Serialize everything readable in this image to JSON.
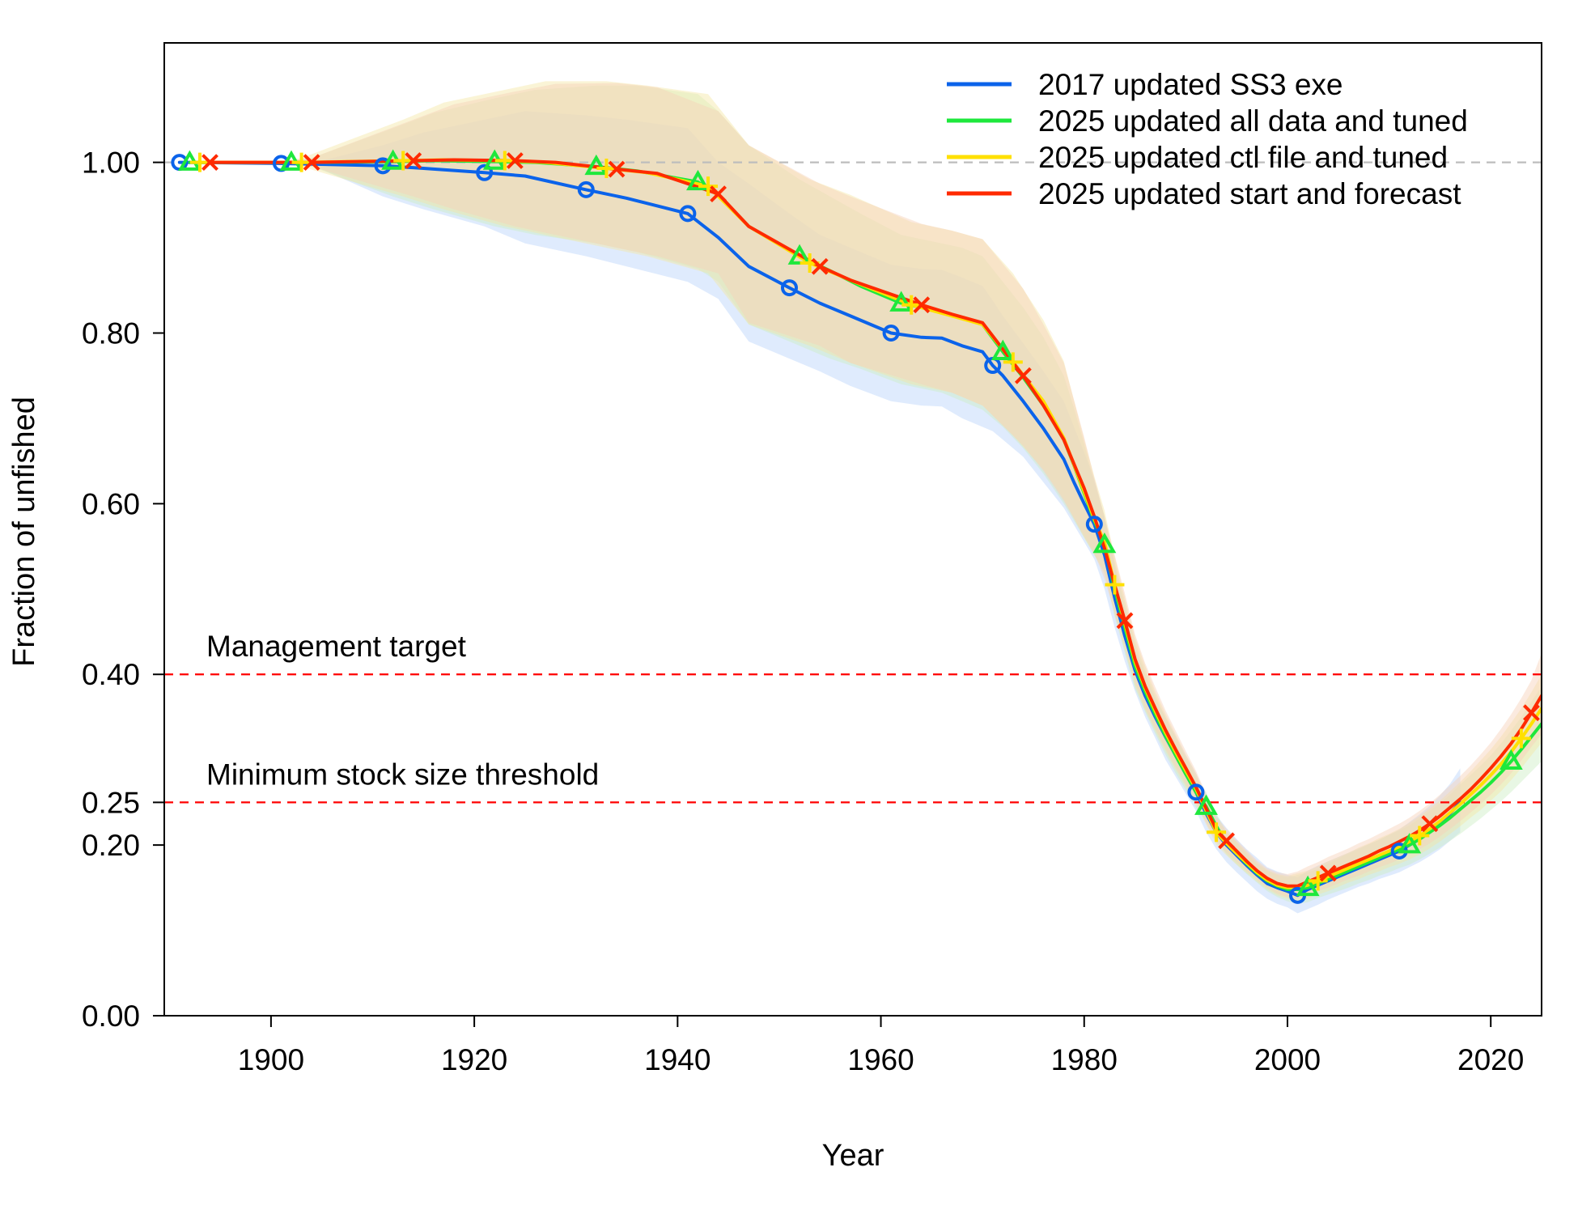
{
  "chart_data": {
    "type": "line",
    "title": "",
    "xlabel": "Year",
    "ylabel": "Fraction of unfished",
    "xlim": [
      1889.5,
      2025
    ],
    "ylim": [
      0,
      1.14
    ],
    "x_ticks": [
      1900,
      1920,
      1940,
      1960,
      1980,
      2000,
      2020
    ],
    "y_ticks": [
      {
        "value": 0.0,
        "label": "0.00"
      },
      {
        "value": 0.2,
        "label": "0.20"
      },
      {
        "value": 0.25,
        "label": "0.25"
      },
      {
        "value": 0.4,
        "label": "0.40"
      },
      {
        "value": 0.6,
        "label": "0.60"
      },
      {
        "value": 0.8,
        "label": "0.80"
      },
      {
        "value": 1.0,
        "label": "1.00"
      }
    ],
    "grid": false,
    "legend_position": "top-right",
    "reference_lines": [
      {
        "y": 1.0,
        "label": "",
        "color": "#bdbdbd"
      },
      {
        "y": 0.4,
        "label": "Management target",
        "color": "#ff0000"
      },
      {
        "y": 0.25,
        "label": "Minimum stock size threshold",
        "color": "#ff0000"
      }
    ],
    "series": [
      {
        "name": "2017 updated SS3 exe",
        "color": "#0b63ea",
        "marker": "circle",
        "marker_every": 10,
        "fill": "#b7d2fa",
        "x": [
          1891,
          1900,
          1904,
          1911,
          1915,
          1921,
          1925,
          1931,
          1935,
          1941,
          1944,
          1947,
          1951,
          1954,
          1957,
          1961,
          1964,
          1966,
          1968,
          1970,
          1971,
          1972,
          1974,
          1976,
          1978,
          1979,
          1980,
          1981,
          1982,
          1983,
          1984,
          1985,
          1986,
          1987,
          1988,
          1989,
          1990,
          1991,
          1992,
          1993,
          1994,
          1995,
          1996,
          1997,
          1998,
          1999,
          2000,
          2001,
          2002,
          2003,
          2004,
          2005,
          2006,
          2007,
          2008,
          2009,
          2010,
          2011,
          2012,
          2013,
          2014,
          2015,
          2016,
          2017
        ],
        "y": [
          1.0,
          0.999,
          0.998,
          0.996,
          0.993,
          0.988,
          0.984,
          0.968,
          0.958,
          0.94,
          0.912,
          0.878,
          0.853,
          0.835,
          0.82,
          0.8,
          0.795,
          0.794,
          0.785,
          0.778,
          0.762,
          0.75,
          0.72,
          0.688,
          0.652,
          0.625,
          0.6,
          0.576,
          0.54,
          0.49,
          0.445,
          0.405,
          0.375,
          0.35,
          0.327,
          0.305,
          0.283,
          0.262,
          0.237,
          0.215,
          0.2,
          0.188,
          0.176,
          0.165,
          0.155,
          0.15,
          0.146,
          0.141,
          0.148,
          0.153,
          0.158,
          0.163,
          0.168,
          0.173,
          0.178,
          0.183,
          0.188,
          0.193,
          0.2,
          0.207,
          0.215,
          0.225,
          0.237,
          0.25
        ],
        "lower": [
          1.0,
          0.999,
          0.997,
          0.96,
          0.945,
          0.925,
          0.905,
          0.89,
          0.878,
          0.86,
          0.84,
          0.79,
          0.77,
          0.755,
          0.738,
          0.72,
          0.715,
          0.714,
          0.7,
          0.69,
          0.685,
          0.675,
          0.655,
          0.625,
          0.595,
          0.575,
          0.555,
          0.535,
          0.5,
          0.455,
          0.415,
          0.38,
          0.35,
          0.325,
          0.3,
          0.28,
          0.26,
          0.24,
          0.215,
          0.195,
          0.18,
          0.168,
          0.157,
          0.146,
          0.137,
          0.131,
          0.127,
          0.12,
          0.125,
          0.13,
          0.136,
          0.141,
          0.146,
          0.151,
          0.155,
          0.16,
          0.164,
          0.168,
          0.174,
          0.18,
          0.187,
          0.195,
          0.205,
          0.215
        ],
        "upper": [
          1.0,
          0.999,
          0.999,
          1.02,
          1.035,
          1.05,
          1.06,
          1.055,
          1.05,
          1.04,
          1.0,
          0.975,
          0.94,
          0.915,
          0.9,
          0.88,
          0.875,
          0.874,
          0.865,
          0.855,
          0.838,
          0.82,
          0.788,
          0.755,
          0.72,
          0.69,
          0.66,
          0.628,
          0.585,
          0.528,
          0.478,
          0.432,
          0.4,
          0.372,
          0.35,
          0.328,
          0.305,
          0.284,
          0.258,
          0.235,
          0.22,
          0.207,
          0.195,
          0.185,
          0.174,
          0.169,
          0.165,
          0.162,
          0.17,
          0.176,
          0.181,
          0.186,
          0.191,
          0.196,
          0.201,
          0.206,
          0.212,
          0.218,
          0.227,
          0.236,
          0.246,
          0.258,
          0.272,
          0.29
        ]
      },
      {
        "name": "2025 updated all data and tuned",
        "color": "#1ee83c",
        "marker": "triangle",
        "marker_every": 10,
        "fill": "#cdeec3",
        "x": [
          1892,
          1900,
          1904,
          1912,
          1916,
          1922,
          1926,
          1932,
          1936,
          1942,
          1944,
          1947,
          1952,
          1955,
          1958,
          1962,
          1964,
          1966,
          1968,
          1970,
          1972,
          1974,
          1976,
          1978,
          1979,
          1980,
          1981,
          1982,
          1983,
          1984,
          1985,
          1986,
          1987,
          1988,
          1989,
          1990,
          1991,
          1992,
          1993,
          1994,
          1995,
          1996,
          1997,
          1998,
          1999,
          2000,
          2001,
          2002,
          2003,
          2004,
          2005,
          2006,
          2007,
          2008,
          2009,
          2010,
          2011,
          2012,
          2013,
          2014,
          2015,
          2016,
          2017,
          2018,
          2019,
          2020,
          2021,
          2022,
          2023,
          2024,
          2025
        ],
        "y": [
          1.0,
          1.0,
          1.0,
          1.001,
          1.002,
          1.001,
          1.0,
          0.995,
          0.99,
          0.977,
          0.962,
          0.925,
          0.89,
          0.873,
          0.855,
          0.835,
          0.83,
          0.825,
          0.818,
          0.81,
          0.778,
          0.748,
          0.715,
          0.675,
          0.645,
          0.612,
          0.58,
          0.552,
          0.5,
          0.455,
          0.41,
          0.38,
          0.353,
          0.328,
          0.305,
          0.283,
          0.262,
          0.245,
          0.222,
          0.202,
          0.19,
          0.178,
          0.167,
          0.158,
          0.152,
          0.148,
          0.148,
          0.15,
          0.155,
          0.16,
          0.165,
          0.17,
          0.175,
          0.18,
          0.185,
          0.19,
          0.195,
          0.2,
          0.207,
          0.215,
          0.223,
          0.232,
          0.242,
          0.252,
          0.262,
          0.273,
          0.285,
          0.298,
          0.312,
          0.327,
          0.342
        ],
        "lower": [
          1.0,
          1.0,
          0.995,
          0.96,
          0.945,
          0.925,
          0.915,
          0.905,
          0.895,
          0.875,
          0.86,
          0.81,
          0.785,
          0.77,
          0.758,
          0.74,
          0.735,
          0.73,
          0.72,
          0.71,
          0.69,
          0.665,
          0.635,
          0.6,
          0.58,
          0.56,
          0.54,
          0.52,
          0.468,
          0.425,
          0.383,
          0.356,
          0.33,
          0.306,
          0.284,
          0.264,
          0.244,
          0.228,
          0.207,
          0.189,
          0.177,
          0.166,
          0.156,
          0.146,
          0.139,
          0.134,
          0.131,
          0.133,
          0.138,
          0.142,
          0.146,
          0.15,
          0.155,
          0.159,
          0.164,
          0.168,
          0.173,
          0.177,
          0.183,
          0.19,
          0.197,
          0.205,
          0.213,
          0.222,
          0.231,
          0.241,
          0.251,
          0.262,
          0.274,
          0.286,
          0.298
        ],
        "upper": [
          1.0,
          1.0,
          1.005,
          1.04,
          1.058,
          1.075,
          1.085,
          1.09,
          1.09,
          1.08,
          1.06,
          1.02,
          0.98,
          0.96,
          0.94,
          0.915,
          0.91,
          0.905,
          0.9,
          0.89,
          0.86,
          0.83,
          0.795,
          0.75,
          0.712,
          0.67,
          0.625,
          0.585,
          0.532,
          0.485,
          0.438,
          0.405,
          0.376,
          0.35,
          0.326,
          0.302,
          0.28,
          0.262,
          0.237,
          0.215,
          0.203,
          0.19,
          0.178,
          0.17,
          0.165,
          0.162,
          0.165,
          0.168,
          0.172,
          0.178,
          0.184,
          0.19,
          0.195,
          0.201,
          0.206,
          0.212,
          0.217,
          0.223,
          0.231,
          0.24,
          0.249,
          0.259,
          0.271,
          0.282,
          0.293,
          0.305,
          0.319,
          0.334,
          0.35,
          0.368,
          0.386
        ]
      },
      {
        "name": "2025 updated ctl file and tuned",
        "color": "#ffe000",
        "marker": "plus",
        "marker_every": 10,
        "fill": "#f5e6a3",
        "x": [
          1893,
          1900,
          1903,
          1913,
          1917,
          1923,
          1927,
          1933,
          1937,
          1943,
          1947,
          1953,
          1957,
          1963,
          1967,
          1970,
          1973,
          1976,
          1978,
          1980,
          1981,
          1982,
          1983,
          1984,
          1985,
          1986,
          1987,
          1988,
          1989,
          1990,
          1991,
          1992,
          1993,
          1994,
          1995,
          1996,
          1997,
          1998,
          1999,
          2000,
          2001,
          2002,
          2003,
          2004,
          2005,
          2006,
          2007,
          2008,
          2009,
          2010,
          2011,
          2012,
          2013,
          2014,
          2015,
          2016,
          2017,
          2018,
          2019,
          2020,
          2021,
          2022,
          2023,
          2024,
          2025
        ],
        "y": [
          1.0,
          1.0,
          1.0,
          1.002,
          1.003,
          1.002,
          1.0,
          0.993,
          0.988,
          0.972,
          0.925,
          0.882,
          0.862,
          0.833,
          0.82,
          0.81,
          0.766,
          0.72,
          0.677,
          0.614,
          0.582,
          0.555,
          0.505,
          0.46,
          0.415,
          0.384,
          0.357,
          0.332,
          0.309,
          0.287,
          0.266,
          0.24,
          0.215,
          0.202,
          0.19,
          0.179,
          0.168,
          0.159,
          0.153,
          0.15,
          0.15,
          0.153,
          0.158,
          0.163,
          0.168,
          0.173,
          0.178,
          0.183,
          0.188,
          0.193,
          0.198,
          0.204,
          0.211,
          0.219,
          0.228,
          0.238,
          0.248,
          0.259,
          0.27,
          0.282,
          0.295,
          0.309,
          0.325,
          0.342,
          0.36
        ],
        "lower": [
          1.0,
          1.0,
          0.995,
          0.96,
          0.945,
          0.925,
          0.915,
          0.9,
          0.89,
          0.87,
          0.81,
          0.785,
          0.765,
          0.74,
          0.73,
          0.715,
          0.68,
          0.64,
          0.605,
          0.56,
          0.54,
          0.518,
          0.47,
          0.428,
          0.386,
          0.358,
          0.333,
          0.31,
          0.288,
          0.268,
          0.248,
          0.224,
          0.2,
          0.188,
          0.177,
          0.167,
          0.157,
          0.148,
          0.141,
          0.137,
          0.135,
          0.137,
          0.142,
          0.146,
          0.151,
          0.156,
          0.16,
          0.165,
          0.169,
          0.174,
          0.178,
          0.183,
          0.189,
          0.196,
          0.204,
          0.213,
          0.222,
          0.232,
          0.241,
          0.252,
          0.263,
          0.276,
          0.29,
          0.305,
          0.32
        ],
        "upper": [
          1.0,
          1.0,
          1.005,
          1.05,
          1.07,
          1.085,
          1.095,
          1.095,
          1.09,
          1.08,
          1.02,
          0.98,
          0.962,
          0.93,
          0.92,
          0.91,
          0.87,
          0.815,
          0.767,
          0.675,
          0.632,
          0.592,
          0.538,
          0.49,
          0.443,
          0.41,
          0.38,
          0.354,
          0.33,
          0.306,
          0.284,
          0.256,
          0.23,
          0.216,
          0.204,
          0.192,
          0.18,
          0.171,
          0.166,
          0.164,
          0.167,
          0.17,
          0.175,
          0.181,
          0.186,
          0.191,
          0.197,
          0.202,
          0.208,
          0.213,
          0.219,
          0.226,
          0.234,
          0.243,
          0.252,
          0.263,
          0.274,
          0.286,
          0.299,
          0.312,
          0.327,
          0.343,
          0.36,
          0.379,
          0.4
        ]
      },
      {
        "name": "2025 updated start and forecast",
        "color": "#ff2a00",
        "marker": "x",
        "marker_every": 10,
        "fill": "#f7d0b8",
        "x": [
          1894,
          1900,
          1904,
          1914,
          1918,
          1924,
          1928,
          1934,
          1938,
          1944,
          1947,
          1954,
          1957,
          1964,
          1967,
          1970,
          1974,
          1976,
          1978,
          1980,
          1981,
          1982,
          1983,
          1984,
          1985,
          1986,
          1987,
          1988,
          1989,
          1990,
          1991,
          1992,
          1993,
          1994,
          1995,
          1996,
          1997,
          1998,
          1999,
          2000,
          2001,
          2002,
          2003,
          2004,
          2005,
          2006,
          2007,
          2008,
          2009,
          2010,
          2011,
          2012,
          2013,
          2014,
          2015,
          2016,
          2017,
          2018,
          2019,
          2020,
          2021,
          2022,
          2023,
          2024,
          2025
        ],
        "y": [
          1.0,
          1.0,
          1.0,
          1.002,
          1.003,
          1.002,
          1.0,
          0.992,
          0.987,
          0.963,
          0.925,
          0.878,
          0.862,
          0.833,
          0.822,
          0.812,
          0.75,
          0.715,
          0.675,
          0.618,
          0.585,
          0.548,
          0.505,
          0.463,
          0.418,
          0.386,
          0.36,
          0.335,
          0.312,
          0.29,
          0.268,
          0.243,
          0.218,
          0.205,
          0.193,
          0.181,
          0.17,
          0.161,
          0.155,
          0.152,
          0.152,
          0.157,
          0.162,
          0.167,
          0.172,
          0.177,
          0.182,
          0.187,
          0.193,
          0.198,
          0.204,
          0.21,
          0.217,
          0.225,
          0.234,
          0.244,
          0.254,
          0.265,
          0.277,
          0.29,
          0.304,
          0.319,
          0.336,
          0.355,
          0.375
        ],
        "lower": [
          1.0,
          1.0,
          0.995,
          0.96,
          0.945,
          0.925,
          0.915,
          0.9,
          0.89,
          0.87,
          0.812,
          0.785,
          0.765,
          0.74,
          0.73,
          0.715,
          0.668,
          0.638,
          0.603,
          0.562,
          0.542,
          0.512,
          0.472,
          0.432,
          0.39,
          0.36,
          0.336,
          0.313,
          0.291,
          0.271,
          0.25,
          0.226,
          0.203,
          0.191,
          0.18,
          0.169,
          0.159,
          0.15,
          0.143,
          0.139,
          0.137,
          0.141,
          0.146,
          0.15,
          0.155,
          0.16,
          0.164,
          0.169,
          0.174,
          0.178,
          0.183,
          0.189,
          0.195,
          0.202,
          0.21,
          0.219,
          0.228,
          0.238,
          0.248,
          0.259,
          0.271,
          0.284,
          0.299,
          0.315,
          0.33
        ],
        "upper": [
          1.0,
          1.0,
          1.005,
          1.05,
          1.068,
          1.083,
          1.092,
          1.093,
          1.088,
          1.06,
          1.02,
          0.975,
          0.96,
          0.928,
          0.92,
          0.91,
          0.852,
          0.81,
          0.765,
          0.678,
          0.63,
          0.585,
          0.54,
          0.495,
          0.447,
          0.413,
          0.385,
          0.358,
          0.334,
          0.31,
          0.287,
          0.26,
          0.233,
          0.219,
          0.206,
          0.194,
          0.182,
          0.173,
          0.168,
          0.166,
          0.169,
          0.175,
          0.18,
          0.186,
          0.191,
          0.196,
          0.202,
          0.207,
          0.213,
          0.219,
          0.225,
          0.232,
          0.24,
          0.249,
          0.259,
          0.27,
          0.281,
          0.293,
          0.306,
          0.32,
          0.336,
          0.353,
          0.372,
          0.393,
          0.425
        ]
      }
    ]
  }
}
